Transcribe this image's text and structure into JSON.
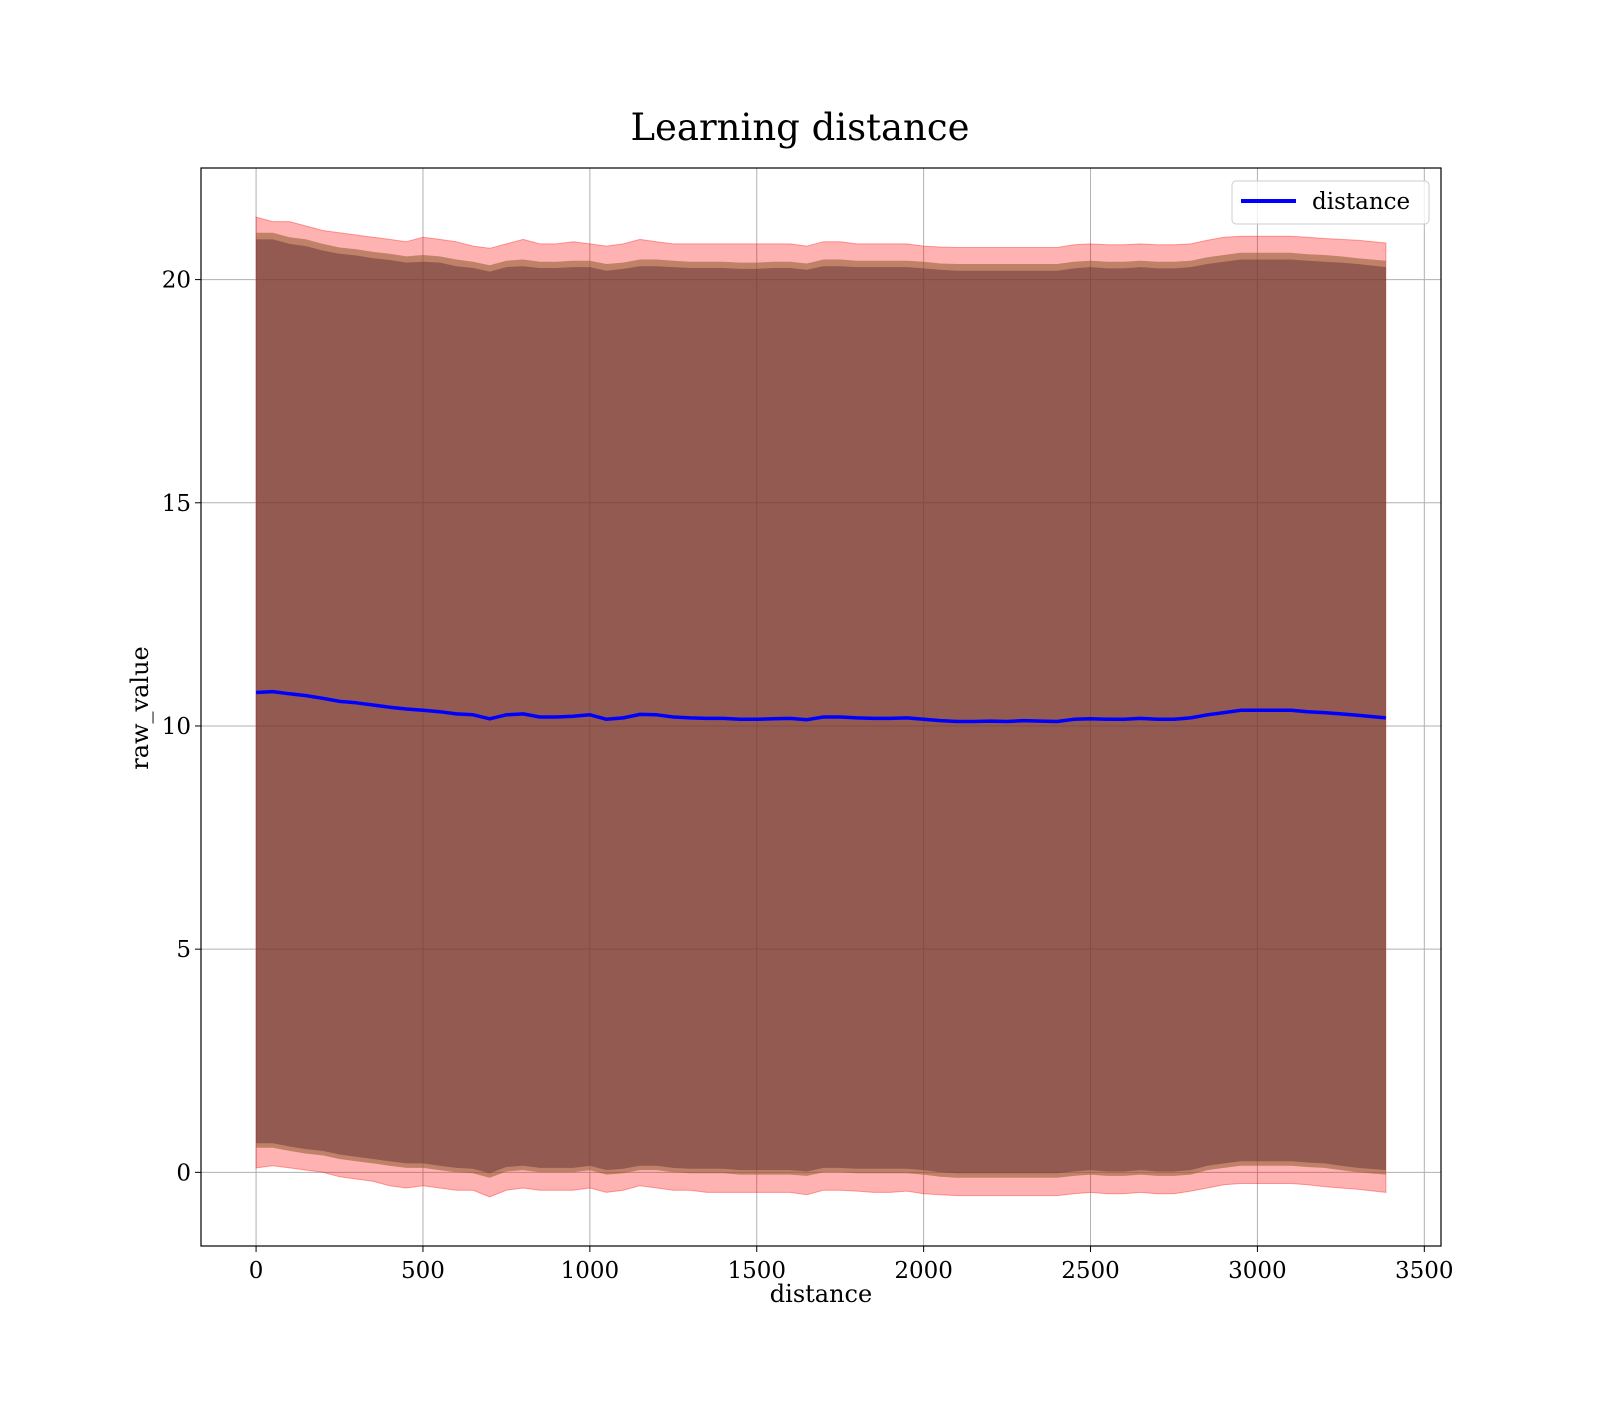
{
  "chart_data": {
    "type": "area",
    "title": "Learning distance",
    "xlabel": "distance",
    "ylabel": "raw_value",
    "xlim": [
      -165,
      3550
    ],
    "ylim": [
      -1.65,
      22.5
    ],
    "xticks": [
      0,
      500,
      1000,
      1500,
      2000,
      2500,
      3000,
      3500
    ],
    "yticks": [
      0,
      5,
      10,
      15,
      20
    ],
    "grid": true,
    "legend_position": "top-right",
    "legend": [
      "distance"
    ],
    "colors": {
      "line": "#0000ff",
      "outer_band": "#ff0000",
      "middle_band": "#8b5a2b",
      "inner_band": "#5e2a35",
      "grid": "#b0b0b0"
    },
    "series": [
      {
        "name": "distance",
        "x": [
          0,
          50,
          100,
          150,
          200,
          250,
          300,
          350,
          400,
          450,
          500,
          550,
          600,
          650,
          700,
          750,
          800,
          850,
          900,
          950,
          1000,
          1050,
          1100,
          1150,
          1200,
          1250,
          1300,
          1350,
          1400,
          1450,
          1500,
          1550,
          1600,
          1650,
          1700,
          1750,
          1800,
          1850,
          1900,
          1950,
          2000,
          2050,
          2100,
          2150,
          2200,
          2250,
          2300,
          2350,
          2400,
          2450,
          2500,
          2550,
          2600,
          2650,
          2700,
          2750,
          2800,
          2850,
          2900,
          2950,
          3000,
          3050,
          3100,
          3150,
          3200,
          3250,
          3300,
          3385
        ],
        "y": [
          10.75,
          10.77,
          10.72,
          10.68,
          10.62,
          10.55,
          10.52,
          10.47,
          10.42,
          10.38,
          10.35,
          10.32,
          10.27,
          10.25,
          10.16,
          10.25,
          10.27,
          10.2,
          10.2,
          10.22,
          10.25,
          10.15,
          10.18,
          10.26,
          10.25,
          10.2,
          10.18,
          10.17,
          10.17,
          10.15,
          10.15,
          10.16,
          10.17,
          10.14,
          10.2,
          10.2,
          10.18,
          10.17,
          10.17,
          10.18,
          10.15,
          10.12,
          10.1,
          10.1,
          10.11,
          10.1,
          10.12,
          10.11,
          10.1,
          10.15,
          10.16,
          10.15,
          10.15,
          10.17,
          10.15,
          10.15,
          10.18,
          10.25,
          10.3,
          10.35,
          10.35,
          10.35,
          10.35,
          10.32,
          10.3,
          10.27,
          10.24,
          10.18
        ],
        "outer_band": {
          "upper": [
            21.4,
            21.3,
            21.3,
            21.2,
            21.1,
            21.05,
            21.0,
            20.95,
            20.9,
            20.85,
            20.95,
            20.9,
            20.85,
            20.75,
            20.7,
            20.8,
            20.9,
            20.8,
            20.8,
            20.85,
            20.8,
            20.75,
            20.8,
            20.9,
            20.85,
            20.8,
            20.8,
            20.8,
            20.8,
            20.8,
            20.8,
            20.8,
            20.8,
            20.75,
            20.85,
            20.85,
            20.8,
            20.8,
            20.8,
            20.8,
            20.75,
            20.73,
            20.72,
            20.72,
            20.72,
            20.72,
            20.72,
            20.72,
            20.72,
            20.78,
            20.8,
            20.78,
            20.78,
            20.8,
            20.78,
            20.78,
            20.8,
            20.88,
            20.95,
            20.97,
            20.97,
            20.97,
            20.97,
            20.95,
            20.92,
            20.9,
            20.88,
            20.82
          ],
          "lower": [
            0.1,
            0.15,
            0.1,
            0.05,
            0.0,
            -0.1,
            -0.15,
            -0.2,
            -0.3,
            -0.35,
            -0.3,
            -0.35,
            -0.4,
            -0.4,
            -0.55,
            -0.4,
            -0.35,
            -0.4,
            -0.4,
            -0.4,
            -0.35,
            -0.45,
            -0.4,
            -0.3,
            -0.35,
            -0.4,
            -0.4,
            -0.45,
            -0.45,
            -0.45,
            -0.45,
            -0.45,
            -0.45,
            -0.5,
            -0.4,
            -0.4,
            -0.42,
            -0.45,
            -0.45,
            -0.42,
            -0.48,
            -0.5,
            -0.52,
            -0.52,
            -0.52,
            -0.52,
            -0.52,
            -0.52,
            -0.52,
            -0.48,
            -0.45,
            -0.48,
            -0.48,
            -0.45,
            -0.48,
            -0.48,
            -0.42,
            -0.35,
            -0.28,
            -0.25,
            -0.25,
            -0.25,
            -0.25,
            -0.28,
            -0.32,
            -0.35,
            -0.38,
            -0.45
          ]
        },
        "middle_band": {
          "upper": [
            21.05,
            21.05,
            20.95,
            20.9,
            20.8,
            20.72,
            20.68,
            20.62,
            20.58,
            20.52,
            20.55,
            20.52,
            20.45,
            20.4,
            20.32,
            20.42,
            20.45,
            20.4,
            20.4,
            20.42,
            20.42,
            20.35,
            20.38,
            20.45,
            20.45,
            20.42,
            20.4,
            20.4,
            20.4,
            20.38,
            20.38,
            20.4,
            20.4,
            20.36,
            20.45,
            20.45,
            20.42,
            20.42,
            20.42,
            20.42,
            20.4,
            20.36,
            20.35,
            20.35,
            20.35,
            20.35,
            20.35,
            20.35,
            20.35,
            20.4,
            20.42,
            20.4,
            20.4,
            20.42,
            20.4,
            20.4,
            20.42,
            20.5,
            20.55,
            20.6,
            20.6,
            20.6,
            20.6,
            20.57,
            20.55,
            20.52,
            20.48,
            20.42
          ],
          "lower": [
            0.55,
            0.55,
            0.48,
            0.42,
            0.38,
            0.3,
            0.25,
            0.2,
            0.15,
            0.1,
            0.1,
            0.05,
            0.0,
            -0.02,
            -0.12,
            0.02,
            0.05,
            0.0,
            0.0,
            0.0,
            0.05,
            -0.05,
            -0.02,
            0.05,
            0.05,
            0.0,
            -0.02,
            -0.02,
            -0.02,
            -0.05,
            -0.05,
            -0.05,
            -0.05,
            -0.08,
            0.0,
            0.0,
            -0.02,
            -0.02,
            -0.02,
            -0.02,
            -0.05,
            -0.1,
            -0.12,
            -0.12,
            -0.12,
            -0.12,
            -0.12,
            -0.12,
            -0.12,
            -0.08,
            -0.05,
            -0.08,
            -0.08,
            -0.05,
            -0.08,
            -0.08,
            -0.05,
            0.05,
            0.1,
            0.15,
            0.15,
            0.15,
            0.15,
            0.12,
            0.1,
            0.05,
            0.0,
            -0.05
          ]
        },
        "inner_band": {
          "upper": [
            20.9,
            20.9,
            20.8,
            20.75,
            20.65,
            20.58,
            20.54,
            20.48,
            20.44,
            20.38,
            20.4,
            20.38,
            20.3,
            20.26,
            20.18,
            20.28,
            20.3,
            20.26,
            20.26,
            20.28,
            20.28,
            20.2,
            20.24,
            20.3,
            20.3,
            20.28,
            20.26,
            20.26,
            20.26,
            20.24,
            20.24,
            20.26,
            20.26,
            20.22,
            20.3,
            20.3,
            20.28,
            20.28,
            20.28,
            20.28,
            20.25,
            20.22,
            20.2,
            20.2,
            20.2,
            20.2,
            20.2,
            20.2,
            20.2,
            20.25,
            20.28,
            20.25,
            20.25,
            20.28,
            20.25,
            20.25,
            20.28,
            20.35,
            20.4,
            20.45,
            20.45,
            20.45,
            20.45,
            20.42,
            20.4,
            20.38,
            20.35,
            20.28
          ],
          "lower": [
            0.65,
            0.65,
            0.58,
            0.52,
            0.48,
            0.4,
            0.35,
            0.3,
            0.25,
            0.2,
            0.2,
            0.15,
            0.1,
            0.08,
            -0.02,
            0.12,
            0.15,
            0.1,
            0.1,
            0.1,
            0.15,
            0.05,
            0.08,
            0.15,
            0.15,
            0.1,
            0.08,
            0.08,
            0.08,
            0.05,
            0.05,
            0.05,
            0.05,
            0.02,
            0.1,
            0.1,
            0.08,
            0.08,
            0.08,
            0.08,
            0.05,
            0.0,
            -0.02,
            -0.02,
            -0.02,
            -0.02,
            -0.02,
            -0.02,
            -0.02,
            0.02,
            0.05,
            0.02,
            0.02,
            0.05,
            0.02,
            0.02,
            0.05,
            0.15,
            0.2,
            0.25,
            0.25,
            0.25,
            0.25,
            0.22,
            0.2,
            0.15,
            0.1,
            0.05
          ]
        }
      }
    ]
  }
}
